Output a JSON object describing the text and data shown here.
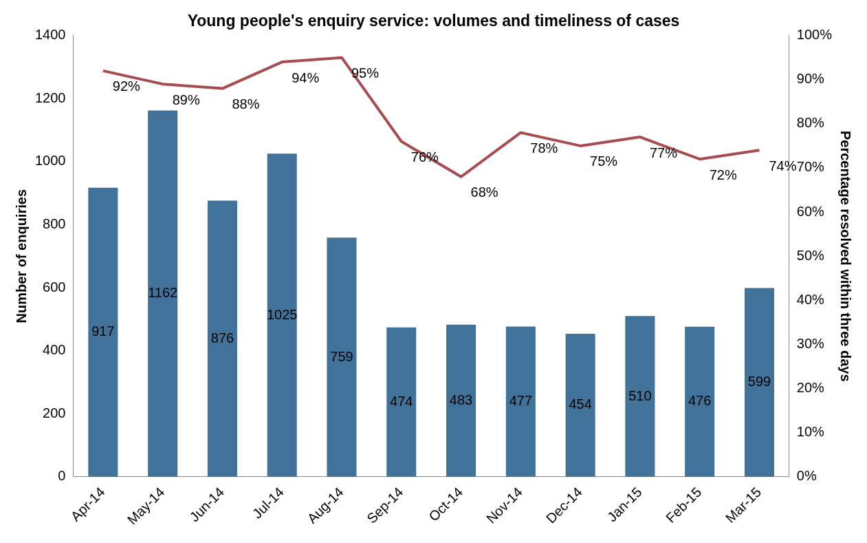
{
  "chart_data": {
    "type": "bar",
    "title": "Young people's enquiry service: volumes and timeliness of cases",
    "categories": [
      "Apr-14",
      "May-14",
      "Jun-14",
      "Jul-14",
      "Aug-14",
      "Sep-14",
      "Oct-14",
      "Nov-14",
      "Dec-14",
      "Jan-15",
      "Feb-15",
      "Mar-15"
    ],
    "series": [
      {
        "color": "#41729a",
        "values": [
          917,
          1162,
          876,
          1025,
          759,
          474,
          483,
          477,
          454,
          510,
          476,
          599
        ],
        "value_labels": [
          "917",
          "1162",
          "876",
          "1025",
          "759",
          "474",
          "483",
          "477",
          "454",
          "510",
          "476",
          "599"
        ]
      },
      {
        "type": "line",
        "axis": "y2",
        "color": "#a84d4f",
        "values": [
          92,
          89,
          88,
          94,
          95,
          76,
          68,
          78,
          75,
          77,
          72,
          74
        ],
        "value_labels": [
          "92%",
          "89%",
          "88%",
          "94%",
          "95%",
          "76%",
          "68%",
          "78%",
          "75%",
          "77%",
          "72%",
          "74%"
        ]
      }
    ],
    "ylabel": "Number of enquiries",
    "y2label": "Percentage resolved within three days",
    "ylim": [
      0,
      1400
    ],
    "yticks": [
      0,
      200,
      400,
      600,
      800,
      1000,
      1200,
      1400
    ],
    "y2lim": [
      0,
      100
    ],
    "y2ticks": [
      {
        "value": 0,
        "label": "0%"
      },
      {
        "value": 10,
        "label": "10%"
      },
      {
        "value": 20,
        "label": "20%"
      },
      {
        "value": 30,
        "label": "30%"
      },
      {
        "value": 40,
        "label": "40%"
      },
      {
        "value": 50,
        "label": "50%"
      },
      {
        "value": 60,
        "label": "60%"
      },
      {
        "value": 70,
        "label": "70%"
      },
      {
        "value": 80,
        "label": "80%"
      },
      {
        "value": 90,
        "label": "90%"
      },
      {
        "value": 100,
        "label": "100%"
      }
    ],
    "grid": false,
    "legend": false,
    "marker": "none",
    "line_style": "solid"
  }
}
